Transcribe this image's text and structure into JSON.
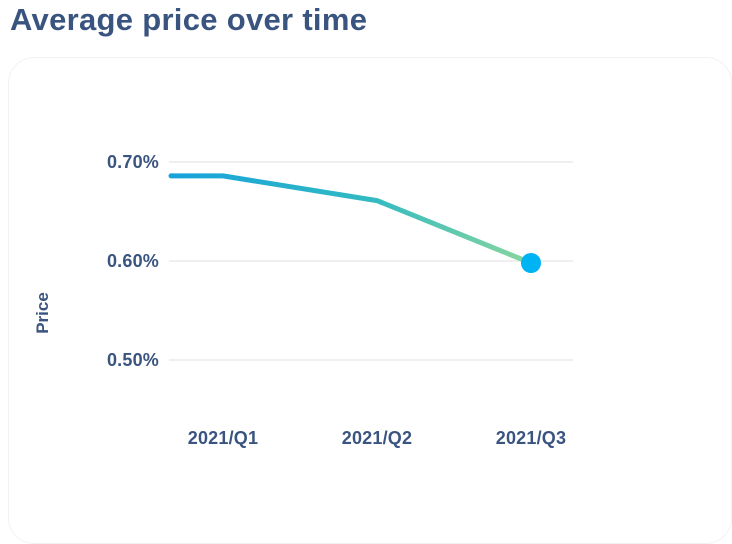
{
  "page": {
    "title": "Average price over time"
  },
  "colors": {
    "title_text": "#3A5480",
    "axis_text": "#3A5480",
    "gridline": "#EFEFEF",
    "card_background": "#FFFFFF",
    "dot": "#00B3F2",
    "line_gradient": [
      "#17A2DB",
      "#31BAC2",
      "#8BD69B"
    ]
  },
  "chart_data": {
    "type": "line",
    "title": "Average price over time",
    "categories": [
      "2021/Q1",
      "2021/Q2",
      "2021/Q3"
    ],
    "series": [
      {
        "name": "Average price",
        "values": [
          0.686,
          0.661,
          0.598
        ]
      }
    ],
    "xlabel": "",
    "ylabel": "Price",
    "y_ticks": [
      "0.70%",
      "0.60%",
      "0.50%"
    ],
    "y_tick_values": [
      0.7,
      0.6,
      0.5
    ],
    "ylim": [
      0.45,
      0.74
    ],
    "grid": "horizontal",
    "legend": false,
    "line_starts_at_plot_edge": true,
    "last_point_highlighted": true
  }
}
